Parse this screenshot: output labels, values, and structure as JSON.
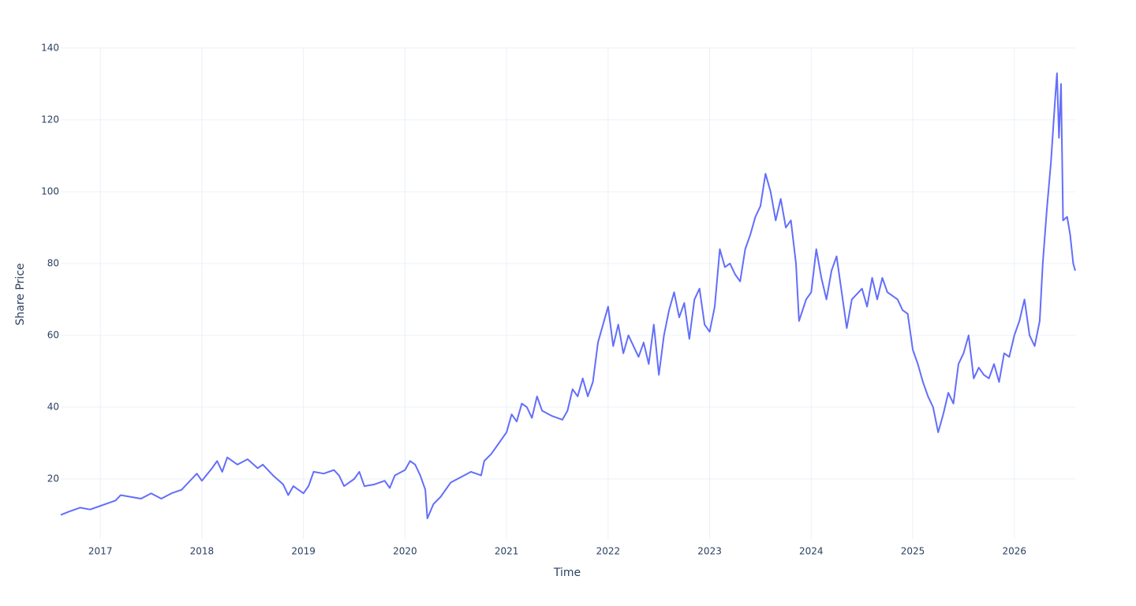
{
  "chart_data": {
    "type": "line",
    "xlabel": "Time",
    "ylabel": "Share Price",
    "color": "#636efa",
    "grid": true,
    "xlim": [
      2016.61,
      2026.6
    ],
    "xticks": [
      2017,
      2018,
      2019,
      2020,
      2021,
      2022,
      2023,
      2024,
      2025,
      2026
    ],
    "ylim": [
      3.3,
      140.2
    ],
    "yticks": [
      20,
      40,
      60,
      80,
      100,
      120,
      140
    ],
    "x": [
      2016.61,
      2016.7,
      2016.8,
      2016.9,
      2017.0,
      2017.1,
      2017.15,
      2017.2,
      2017.3,
      2017.4,
      2017.5,
      2017.6,
      2017.7,
      2017.8,
      2017.9,
      2017.95,
      2018.0,
      2018.1,
      2018.15,
      2018.2,
      2018.25,
      2018.35,
      2018.45,
      2018.55,
      2018.6,
      2018.7,
      2018.8,
      2018.85,
      2018.9,
      2019.0,
      2019.05,
      2019.1,
      2019.2,
      2019.3,
      2019.35,
      2019.4,
      2019.5,
      2019.55,
      2019.6,
      2019.7,
      2019.8,
      2019.85,
      2019.9,
      2020.0,
      2020.05,
      2020.1,
      2020.15,
      2020.2,
      2020.22,
      2020.28,
      2020.35,
      2020.45,
      2020.55,
      2020.65,
      2020.75,
      2020.78,
      2020.85,
      2020.95,
      2021.0,
      2021.05,
      2021.1,
      2021.15,
      2021.2,
      2021.25,
      2021.3,
      2021.35,
      2021.45,
      2021.55,
      2021.6,
      2021.65,
      2021.7,
      2021.75,
      2021.8,
      2021.85,
      2021.9,
      2021.95,
      2022.0,
      2022.05,
      2022.1,
      2022.15,
      2022.2,
      2022.3,
      2022.35,
      2022.4,
      2022.45,
      2022.5,
      2022.55,
      2022.6,
      2022.65,
      2022.7,
      2022.75,
      2022.8,
      2022.85,
      2022.9,
      2022.95,
      2023.0,
      2023.05,
      2023.1,
      2023.15,
      2023.2,
      2023.25,
      2023.3,
      2023.35,
      2023.4,
      2023.45,
      2023.5,
      2023.55,
      2023.6,
      2023.65,
      2023.7,
      2023.75,
      2023.8,
      2023.85,
      2023.88,
      2023.95,
      2024.0,
      2024.05,
      2024.1,
      2024.15,
      2024.2,
      2024.25,
      2024.3,
      2024.35,
      2024.4,
      2024.5,
      2024.55,
      2024.6,
      2024.65,
      2024.7,
      2024.75,
      2024.85,
      2024.9,
      2024.95,
      2025.0,
      2025.05,
      2025.1,
      2025.15,
      2025.2,
      2025.25,
      2025.3,
      2025.35,
      2025.4,
      2025.45,
      2025.5,
      2025.55,
      2025.6,
      2025.65,
      2025.7,
      2025.75,
      2025.8,
      2025.85,
      2025.9,
      2025.95,
      2026.0,
      2026.05,
      2026.1,
      2026.15,
      2026.2,
      2026.25,
      2026.28,
      2026.32,
      2026.36,
      2026.4,
      2026.42,
      2026.44,
      2026.46,
      2026.48,
      2026.52,
      2026.55,
      2026.58,
      2026.6
    ],
    "values": [
      10,
      11,
      12,
      11.5,
      12.5,
      13.5,
      14,
      15.5,
      15,
      14.5,
      16,
      14.5,
      16,
      17,
      20,
      21.5,
      19.5,
      23,
      25,
      22,
      26,
      24,
      25.5,
      23,
      24,
      21,
      18.5,
      15.5,
      18,
      16,
      18,
      22,
      21.5,
      22.5,
      21,
      18,
      20,
      22,
      18,
      18.5,
      19.5,
      17.5,
      21,
      22.5,
      25,
      24,
      21,
      17,
      9,
      13,
      15,
      19,
      20.5,
      22,
      21,
      25,
      27,
      31,
      33,
      38,
      36,
      41,
      40,
      37,
      43,
      39,
      37.5,
      36.5,
      39,
      45,
      43,
      48,
      43,
      47,
      58,
      63,
      68,
      57,
      63,
      55,
      60,
      54,
      58,
      52,
      63,
      49,
      60,
      67,
      72,
      65,
      69,
      59,
      70,
      73,
      63,
      61,
      68,
      84,
      79,
      80,
      77,
      75,
      84,
      88,
      93,
      96,
      105,
      100,
      92,
      98,
      90,
      92,
      80,
      64,
      70,
      72,
      84,
      76,
      70,
      78,
      82,
      72,
      62,
      70,
      73,
      68,
      76,
      70,
      76,
      72,
      70,
      67,
      66,
      56,
      52,
      47,
      43,
      40,
      33,
      38,
      44,
      41,
      52,
      55,
      60,
      48,
      51,
      49,
      48,
      52,
      47,
      55,
      54,
      60,
      64,
      70,
      60,
      57,
      64,
      80,
      95,
      108,
      125,
      133,
      115,
      130,
      92,
      93,
      88,
      80,
      78
    ]
  }
}
